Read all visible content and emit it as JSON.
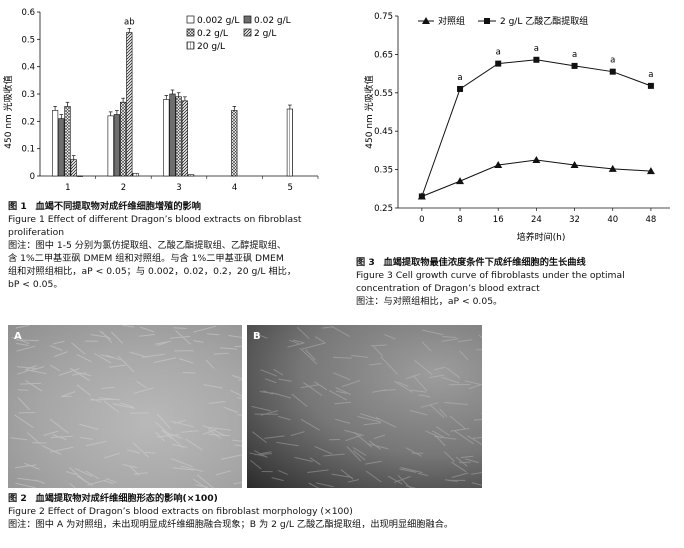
{
  "fig1": {
    "ylabel": "450 nm 光吸收值",
    "yticks": [
      "0",
      "0.1",
      "0.2",
      "0.3",
      "0.4",
      "0.5",
      "0.6"
    ],
    "xticks": [
      "1",
      "2",
      "3",
      "4",
      "5"
    ],
    "legend": [
      "0.002 g/L",
      "0.02 g/L",
      "0.2 g/L",
      "2 g/L",
      "20 g/L"
    ],
    "annotation": "ab",
    "caption": {
      "num": "图 1",
      "title_cn": "血竭不同提取物对成纤维细胞增殖的影响",
      "title_en_1": "Figure 1    Effect of different Dragon’s blood extracts on fibroblast",
      "title_en_2": "proliferation",
      "note_1": "图注：图中 1-5 分别为氯仿提取组、乙酸乙酯提取组、乙醇提取组、",
      "note_2": "含 1%二甲基亚砜 DMEM 组和对照组。与含 1%二甲基亚砜 DMEM",
      "note_3": "组和对照组相比，aP < 0.05；与 0.002，0.02，0.2，20 g/L 相比，",
      "note_4": "bP < 0.05。"
    }
  },
  "chart_data": [
    {
      "type": "bar",
      "categories": [
        "1",
        "2",
        "3",
        "4",
        "5"
      ],
      "series": [
        {
          "name": "0.002 g/L",
          "values": [
            0.24,
            0.22,
            0.28,
            null,
            null
          ]
        },
        {
          "name": "0.02 g/L",
          "values": [
            0.21,
            0.225,
            0.3,
            null,
            null
          ]
        },
        {
          "name": "0.2 g/L",
          "values": [
            0.255,
            0.27,
            0.29,
            0.24,
            null
          ]
        },
        {
          "name": "2 g/L",
          "values": [
            0.06,
            0.525,
            0.275,
            null,
            null
          ]
        },
        {
          "name": "20 g/L",
          "values": [
            0.0,
            0.01,
            0.005,
            null,
            0.245
          ]
        }
      ],
      "ylabel": "450 nm 光吸收值",
      "ylim": [
        0,
        0.6
      ],
      "annotations": [
        {
          "category": "2",
          "series": "2 g/L",
          "text": "ab"
        }
      ]
    },
    {
      "type": "line",
      "x": [
        0,
        8,
        16,
        24,
        32,
        40,
        48
      ],
      "series": [
        {
          "name": "对照组",
          "values": [
            0.28,
            0.32,
            0.362,
            0.375,
            0.362,
            0.352,
            0.346
          ]
        },
        {
          "name": "2 g/L 乙酸乙酯提取组",
          "values": [
            0.28,
            0.56,
            0.626,
            0.636,
            0.62,
            0.605,
            0.568
          ]
        }
      ],
      "xlabel": "培养时间(h)",
      "ylabel": "450 nm 光吸收值",
      "ylim": [
        0.25,
        0.75
      ],
      "xlim": [
        -5,
        52
      ],
      "annotations": [
        "a",
        "a",
        "a",
        "a",
        "a",
        "a"
      ]
    }
  ],
  "fig3": {
    "ylabel": "450 nm 光吸收值",
    "xlabel": "培养时间(h)",
    "yticks": [
      "0.25",
      "0.35",
      "0.45",
      "0.55",
      "0.65",
      "0.75"
    ],
    "xticks": [
      "0",
      "8",
      "16",
      "24",
      "32",
      "40",
      "48"
    ],
    "legend": [
      "对照组",
      "2 g/L 乙酸乙酯提取组"
    ],
    "annotation": "a",
    "caption": {
      "num": "图 3",
      "title_cn": "血竭提取物最佳浓度条件下成纤维细胞的生长曲线",
      "title_en_1": "Figure 3    Cell growth curve of fibroblasts under the optimal",
      "title_en_2": "concentration of Dragon’s blood extract",
      "note_1": "图注：与对照组相比，aP < 0.05。"
    }
  },
  "fig2": {
    "label_a": "A",
    "label_b": "B",
    "caption": {
      "num": "图 2",
      "title_cn": "血竭提取物对成纤维细胞形态的影响(×100)",
      "title_en": "Figure 2    Effect of Dragon’s blood extracts on fibroblast morphology (×100)",
      "note": "图注：图中 A 为对照组，未出现明显成纤维细胞融合现象；B 为 2 g/L 乙酸乙酯提取组，出现明显细胞融合。"
    }
  },
  "colors": {
    "bar_dark": "#6e6e6e",
    "line": "#111111"
  }
}
